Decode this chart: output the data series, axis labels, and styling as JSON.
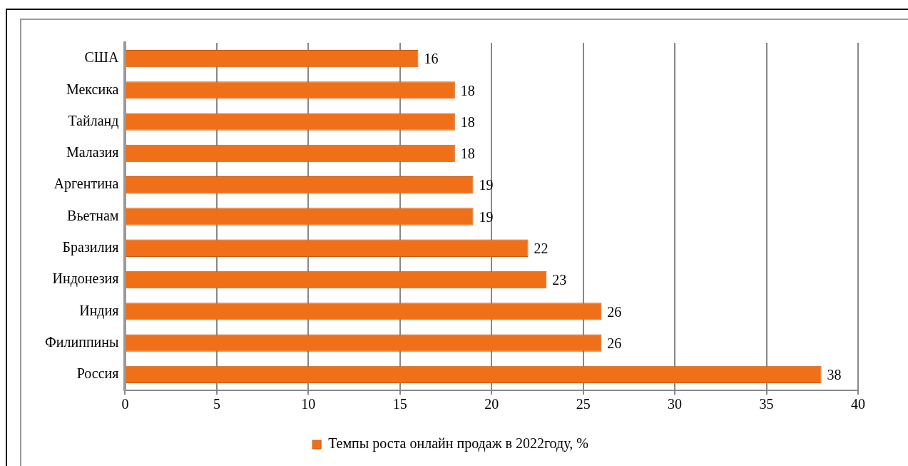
{
  "chart_data": {
    "type": "bar",
    "orientation": "horizontal",
    "categories": [
      "США",
      "Мексика",
      "Тайланд",
      "Малазия",
      "Аргентина",
      "Вьетнам",
      "Бразилия",
      "Индонезия",
      "Индия",
      "Филиппины",
      "Россия"
    ],
    "series": [
      {
        "name": "Темпы роста онлайн продаж в 2022году, %",
        "color": "#f07019",
        "values": [
          16,
          18,
          18,
          18,
          19,
          19,
          22,
          23,
          26,
          26,
          38
        ]
      }
    ],
    "xlim": [
      0,
      40
    ],
    "xticks": [
      0,
      5,
      10,
      15,
      20,
      25,
      30,
      35,
      40
    ],
    "grid": "x",
    "legend": "bottom",
    "data_labels": true
  }
}
